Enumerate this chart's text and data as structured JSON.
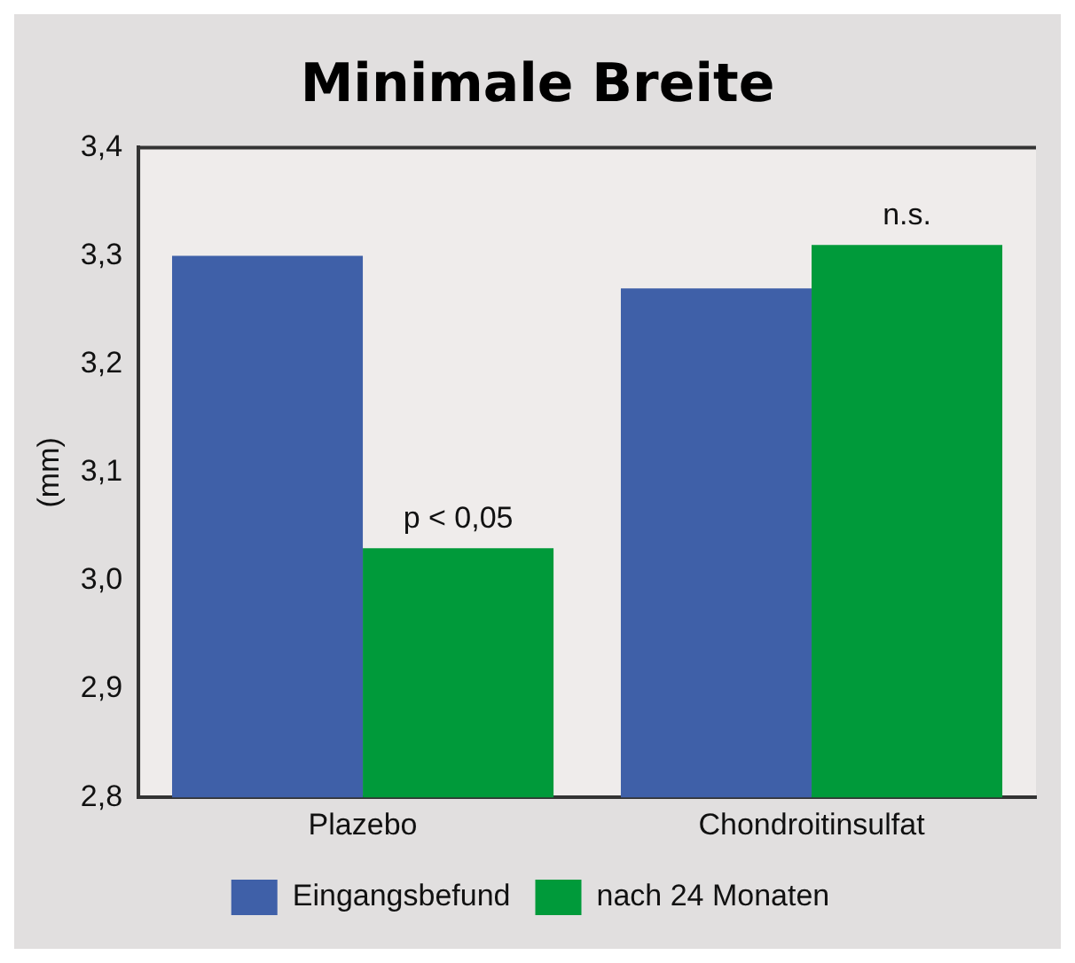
{
  "chart_data": {
    "type": "bar",
    "title": "Minimale Breite",
    "ylabel": "(mm)",
    "categories": [
      "Plazebo",
      "Chondroitinsulfat"
    ],
    "series": [
      {
        "name": "Eingangsbefund",
        "color": "#3f60a8",
        "values": [
          3.3,
          3.27
        ]
      },
      {
        "name": "nach 24 Monaten",
        "color": "#009a3a",
        "values": [
          3.03,
          3.31
        ]
      }
    ],
    "ylim": [
      2.8,
      3.4
    ],
    "yticks": [
      {
        "value": 2.8,
        "label": "2,8"
      },
      {
        "value": 2.9,
        "label": "2,9"
      },
      {
        "value": 3.0,
        "label": "3,0"
      },
      {
        "value": 3.1,
        "label": "3,1"
      },
      {
        "value": 3.2,
        "label": "3,2"
      },
      {
        "value": 3.3,
        "label": "3,3"
      },
      {
        "value": 3.4,
        "label": "3,4"
      }
    ],
    "annotations": [
      {
        "text": "p < 0,05",
        "x": "Plazebo",
        "y": 3.03
      },
      {
        "text": "n.s.",
        "x": "Chondroitinsulfat",
        "y": 3.31
      }
    ],
    "grid": false,
    "legend": "bottom"
  }
}
